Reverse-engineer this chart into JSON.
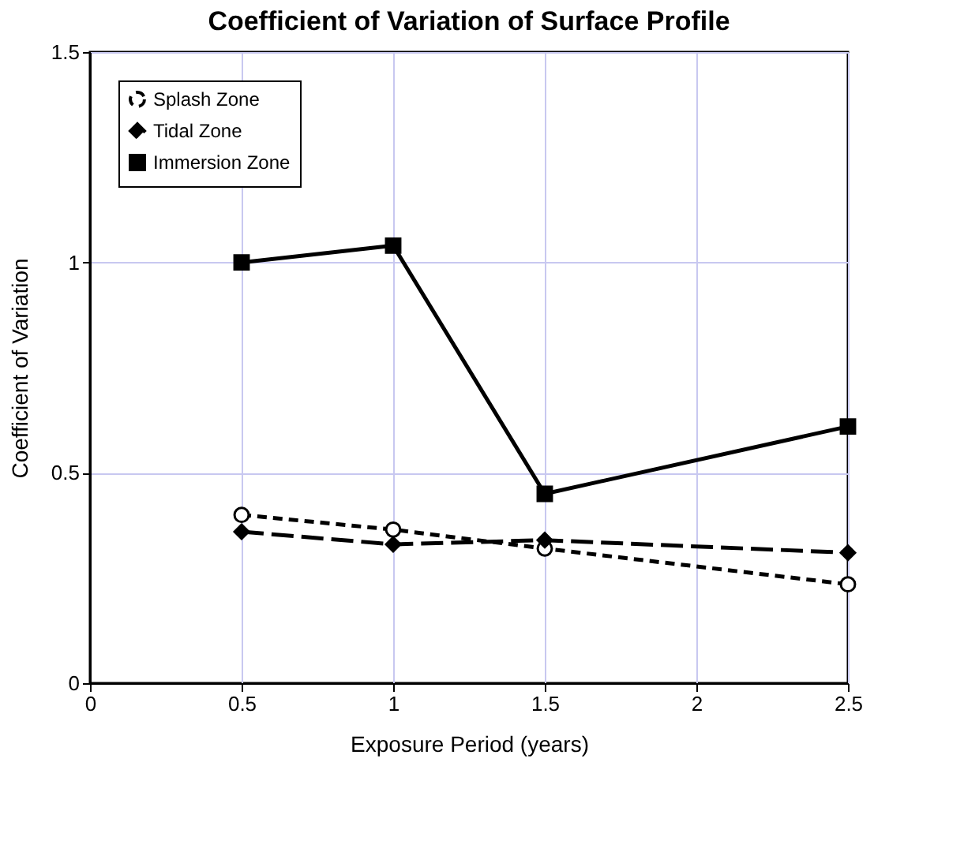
{
  "chart_data": {
    "type": "line",
    "title": "Coefficient of Variation of Surface Profile",
    "xlabel": "Exposure Period (years)",
    "ylabel": "Coefficient of Variation",
    "x": [
      0.5,
      1,
      1.5,
      2.5
    ],
    "series": [
      {
        "name": "Splash Zone",
        "color": "#000000",
        "marker": "circle",
        "line_style": "dashed",
        "values": [
          0.4,
          0.365,
          0.32,
          0.235
        ]
      },
      {
        "name": "Tidal Zone",
        "color": "#000000",
        "marker": "diamond",
        "line_style": "longdash",
        "values": [
          0.36,
          0.33,
          0.34,
          0.31
        ]
      },
      {
        "name": "Immersion Zone",
        "color": "#000000",
        "marker": "square",
        "line_style": "solid",
        "values": [
          1.0,
          1.04,
          0.45,
          0.61
        ]
      }
    ],
    "xlim": [
      0,
      2.5
    ],
    "xticks": [
      0,
      0.5,
      1,
      1.5,
      2,
      2.5
    ],
    "ylim": [
      0,
      1.5
    ],
    "yticks": [
      0,
      0.5,
      1,
      1.5
    ],
    "grid": true,
    "legend": "top left"
  }
}
